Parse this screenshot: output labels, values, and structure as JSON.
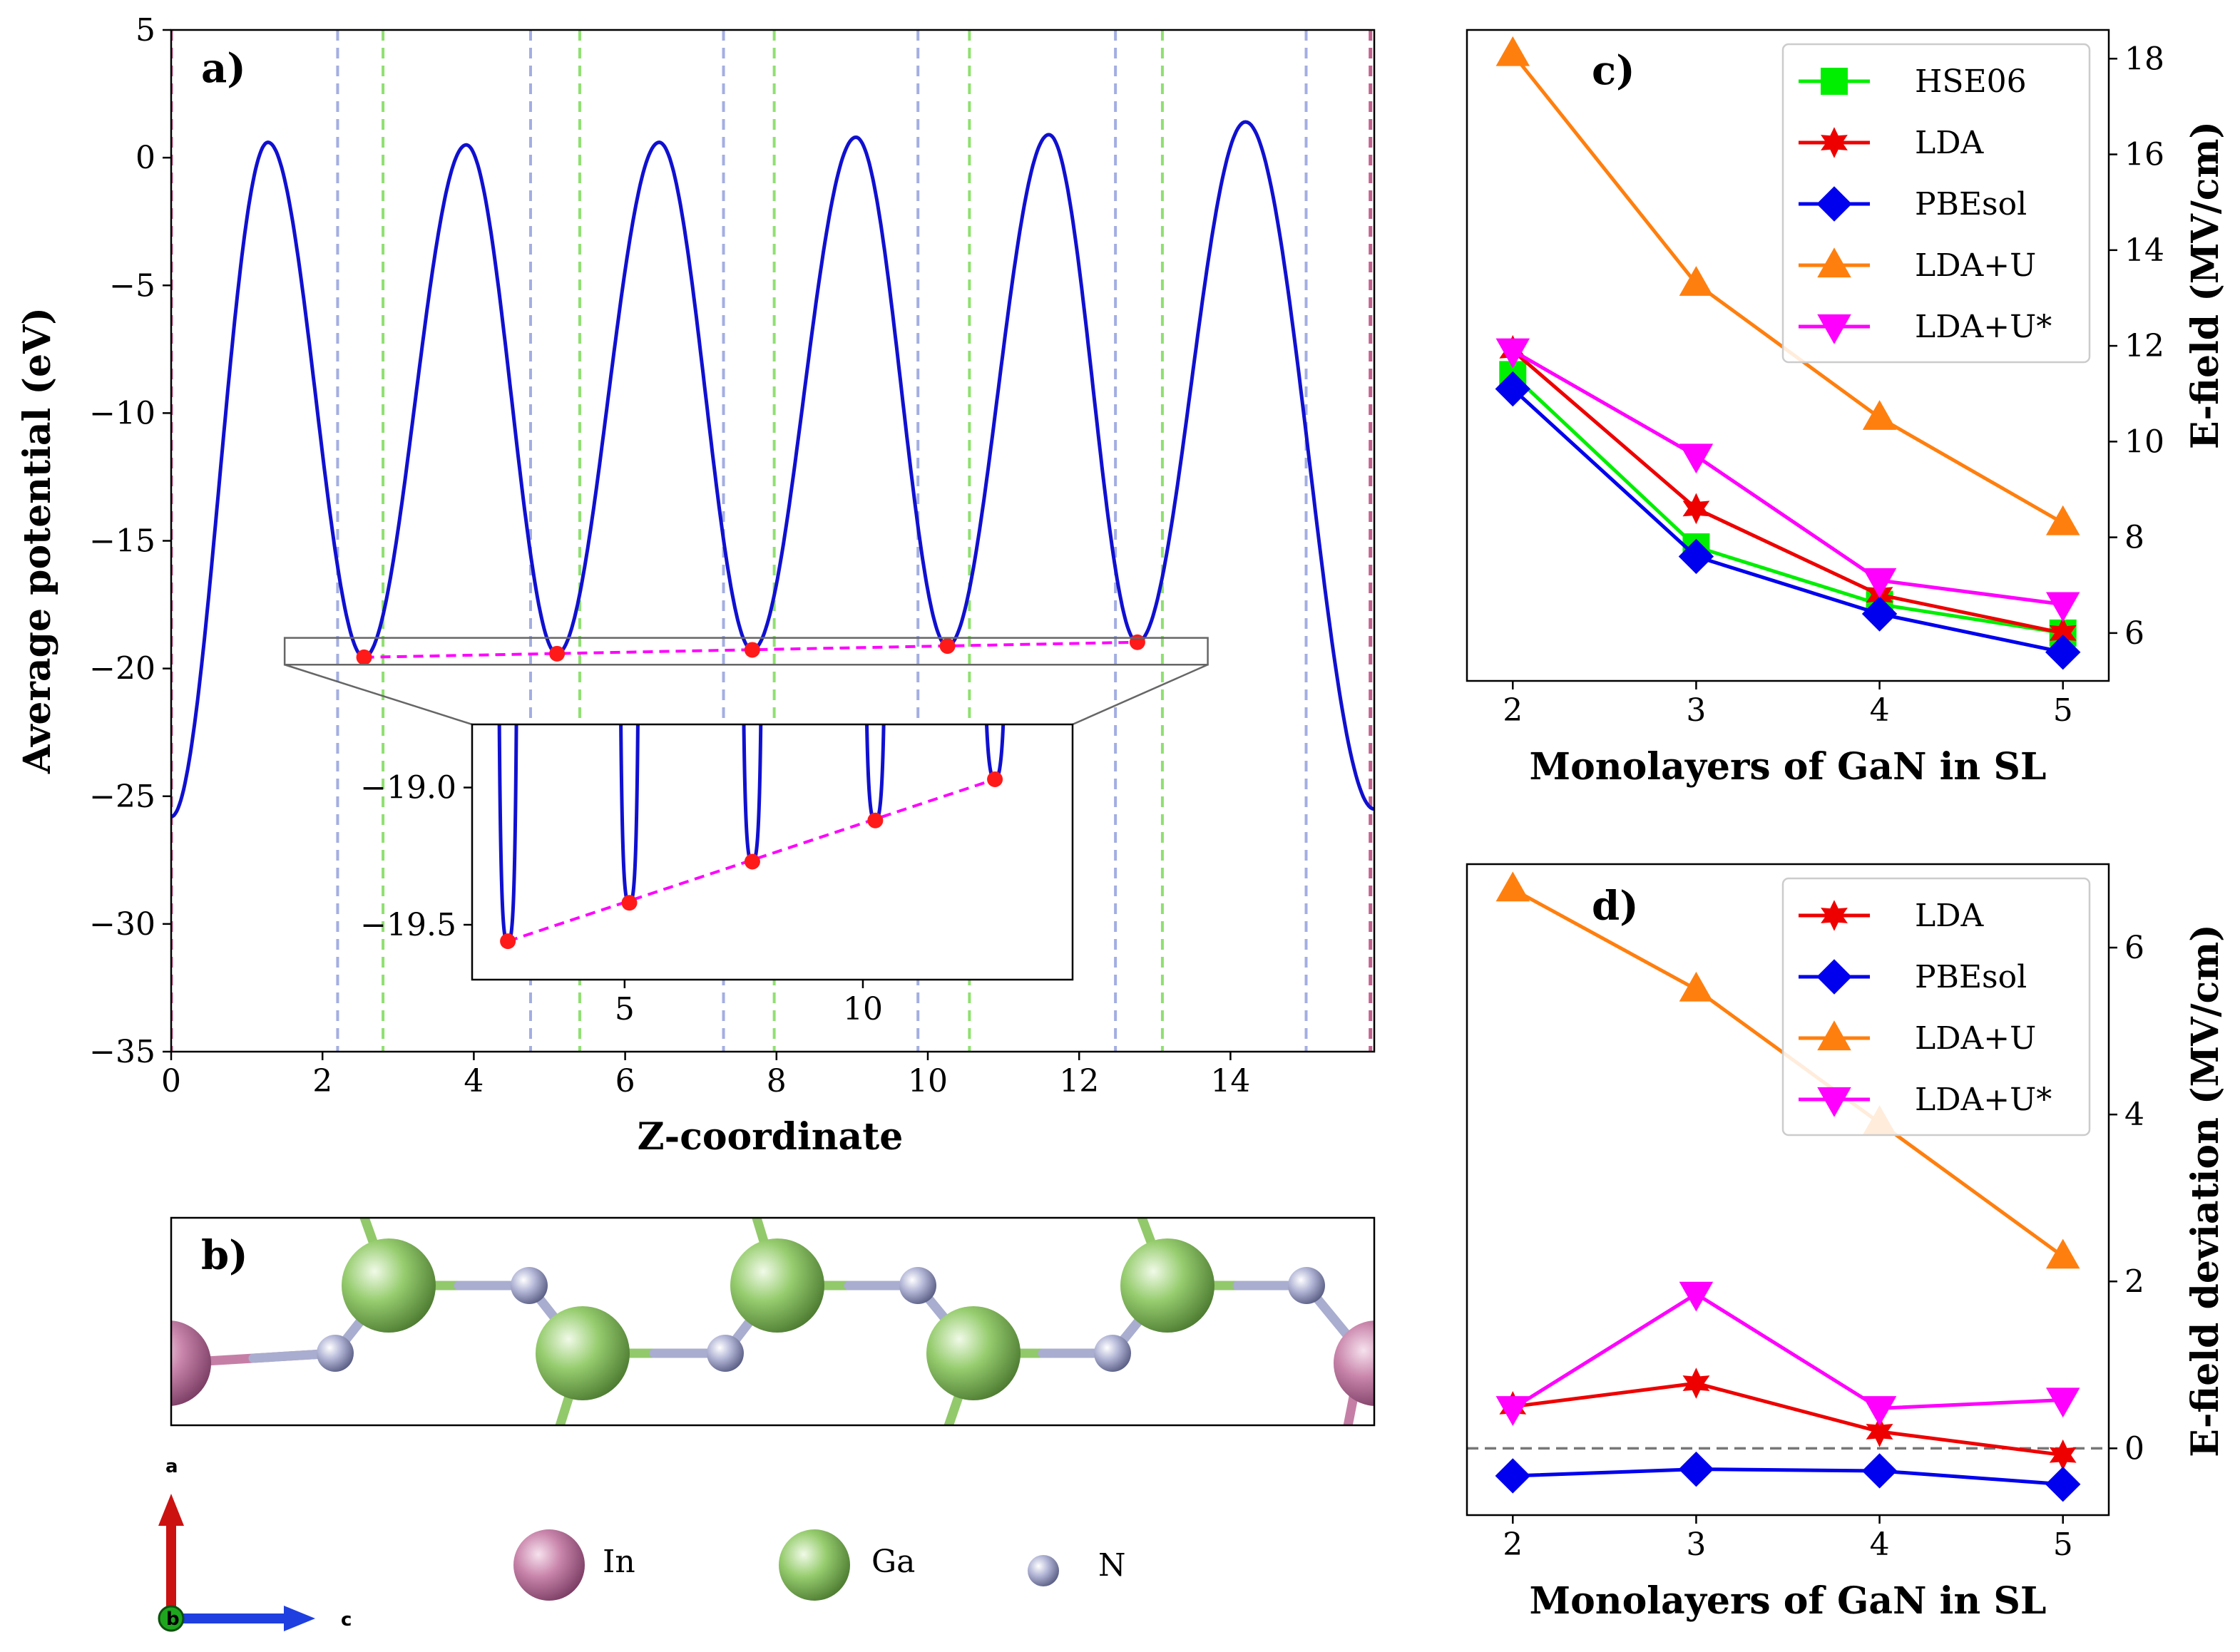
{
  "chart_data": [
    {
      "panel": "a)",
      "type": "line",
      "xlabel": "Z-coordinate",
      "ylabel": "Average potential (eV)",
      "xlim": [
        0,
        15.9
      ],
      "ylim": [
        -35,
        5
      ],
      "xticks": [
        0,
        2,
        4,
        6,
        8,
        10,
        12,
        14
      ],
      "yticks": [
        5,
        0,
        -5,
        -10,
        -15,
        -20,
        -25,
        -30,
        -35
      ],
      "ytick_labels": [
        "5",
        "0",
        "−5",
        "−10",
        "−15",
        "−20",
        "−25",
        "−30",
        "−35"
      ],
      "potential_curve": {
        "color": "#1010d0",
        "start_value": -25.8,
        "end_value": -25.5,
        "maxima": [
          [
            1.28,
            0.6
          ],
          [
            3.9,
            0.5
          ],
          [
            6.45,
            0.6
          ],
          [
            9.05,
            0.8
          ],
          [
            11.6,
            0.9
          ],
          [
            14.2,
            1.4
          ]
        ],
        "minima": [
          [
            2.55,
            -19.56
          ],
          [
            5.1,
            -19.42
          ],
          [
            7.68,
            -19.27
          ],
          [
            10.26,
            -19.12
          ],
          [
            12.77,
            -18.97
          ]
        ]
      },
      "minima_fit_line": {
        "color": "#ff00ff",
        "style": "dashed",
        "x": [
          2.55,
          12.77
        ],
        "y": [
          -19.56,
          -18.97
        ]
      },
      "vertical_lines": {
        "blue_dashed": [
          2.2,
          4.75,
          7.3,
          9.87,
          12.48,
          15.0
        ],
        "green_dashed": [
          2.8,
          5.4,
          7.97,
          10.55,
          13.1
        ],
        "pink_edges": [
          0.0,
          15.85
        ]
      },
      "zoom_box_data_y": [
        -19.85,
        -18.8
      ],
      "inset": {
        "xlim": [
          1.8,
          14.4
        ],
        "ylim": [
          -19.7,
          -18.77
        ],
        "xticks": [
          5,
          10
        ],
        "yticks": [
          -19.0,
          -19.5
        ],
        "ytick_labels": [
          "−19.0",
          "−19.5"
        ],
        "points": [
          [
            2.55,
            -19.56
          ],
          [
            5.1,
            -19.42
          ],
          [
            7.68,
            -19.27
          ],
          [
            10.26,
            -19.12
          ],
          [
            12.77,
            -18.97
          ]
        ]
      }
    },
    {
      "panel": "c)",
      "type": "line",
      "xlabel": "Monolayers of GaN in SL",
      "ylabel": "E-field (MV/cm)",
      "x": [
        2,
        3,
        4,
        5
      ],
      "xlim": [
        1.75,
        5.25
      ],
      "ylim": [
        5.0,
        18.6
      ],
      "yticks": [
        6,
        8,
        10,
        12,
        14,
        16,
        18
      ],
      "series": [
        {
          "name": "HSE06",
          "color": "#00ee00",
          "marker": "square",
          "values": [
            11.4,
            7.8,
            6.6,
            6.0
          ]
        },
        {
          "name": "LDA",
          "color": "#ee0000",
          "marker": "star",
          "values": [
            11.9,
            8.6,
            6.8,
            6.0
          ]
        },
        {
          "name": "PBEsol",
          "color": "#0000ee",
          "marker": "diamond",
          "values": [
            11.1,
            7.6,
            6.4,
            5.6
          ]
        },
        {
          "name": "LDA+U",
          "color": "#ff7f0e",
          "marker": "triangle-up",
          "values": [
            18.1,
            13.3,
            10.5,
            8.3
          ]
        },
        {
          "name": "LDA+U*",
          "color": "#ff00ff",
          "marker": "triangle-down",
          "values": [
            11.9,
            9.7,
            7.1,
            6.6
          ]
        }
      ],
      "legend": [
        "HSE06",
        "LDA",
        "PBEsol",
        "LDA+U",
        "LDA+U*"
      ],
      "legend_labels": [
        "HSE06",
        "LDA",
        "PBEsol",
        "LDA+U",
        "LDA+U*"
      ],
      "legend_position": "top-right"
    },
    {
      "panel": "d)",
      "type": "line",
      "xlabel": "Monolayers of GaN in SL",
      "ylabel": "E-field deviation (MV/cm)",
      "x": [
        2,
        3,
        4,
        5
      ],
      "xlim": [
        1.75,
        5.25
      ],
      "ylim": [
        -0.8,
        7.0
      ],
      "yticks": [
        0,
        2,
        4,
        6
      ],
      "zero_line": {
        "value": 0,
        "color": "#777777",
        "style": "dashed"
      },
      "series": [
        {
          "name": "LDA",
          "color": "#ee0000",
          "marker": "star",
          "values": [
            0.5,
            0.78,
            0.2,
            -0.08
          ]
        },
        {
          "name": "PBEsol",
          "color": "#0000ee",
          "marker": "diamond",
          "values": [
            -0.33,
            -0.25,
            -0.27,
            -0.43
          ]
        },
        {
          "name": "LDA+U",
          "color": "#ff7f0e",
          "marker": "triangle-up",
          "values": [
            6.7,
            5.5,
            3.9,
            2.3
          ]
        },
        {
          "name": "LDA+U*",
          "color": "#ff00ff",
          "marker": "triangle-down",
          "values": [
            0.48,
            1.85,
            0.48,
            0.58
          ]
        }
      ],
      "legend": [
        "LDA",
        "PBEsol",
        "LDA+U",
        "LDA+U*"
      ],
      "legend_labels": [
        "LDA",
        "PBEsol",
        "LDA+U",
        "LDA+U*"
      ],
      "legend_position": "top-right"
    }
  ],
  "panel_b": {
    "label": "b)",
    "legend": [
      "In",
      "Ga",
      "N"
    ],
    "axes_labels": {
      "a": "a",
      "b": "b",
      "c": "c"
    },
    "colors": {
      "In": "#c57fa6",
      "Ga": "#92c96a",
      "N": "#a9adcf"
    }
  }
}
